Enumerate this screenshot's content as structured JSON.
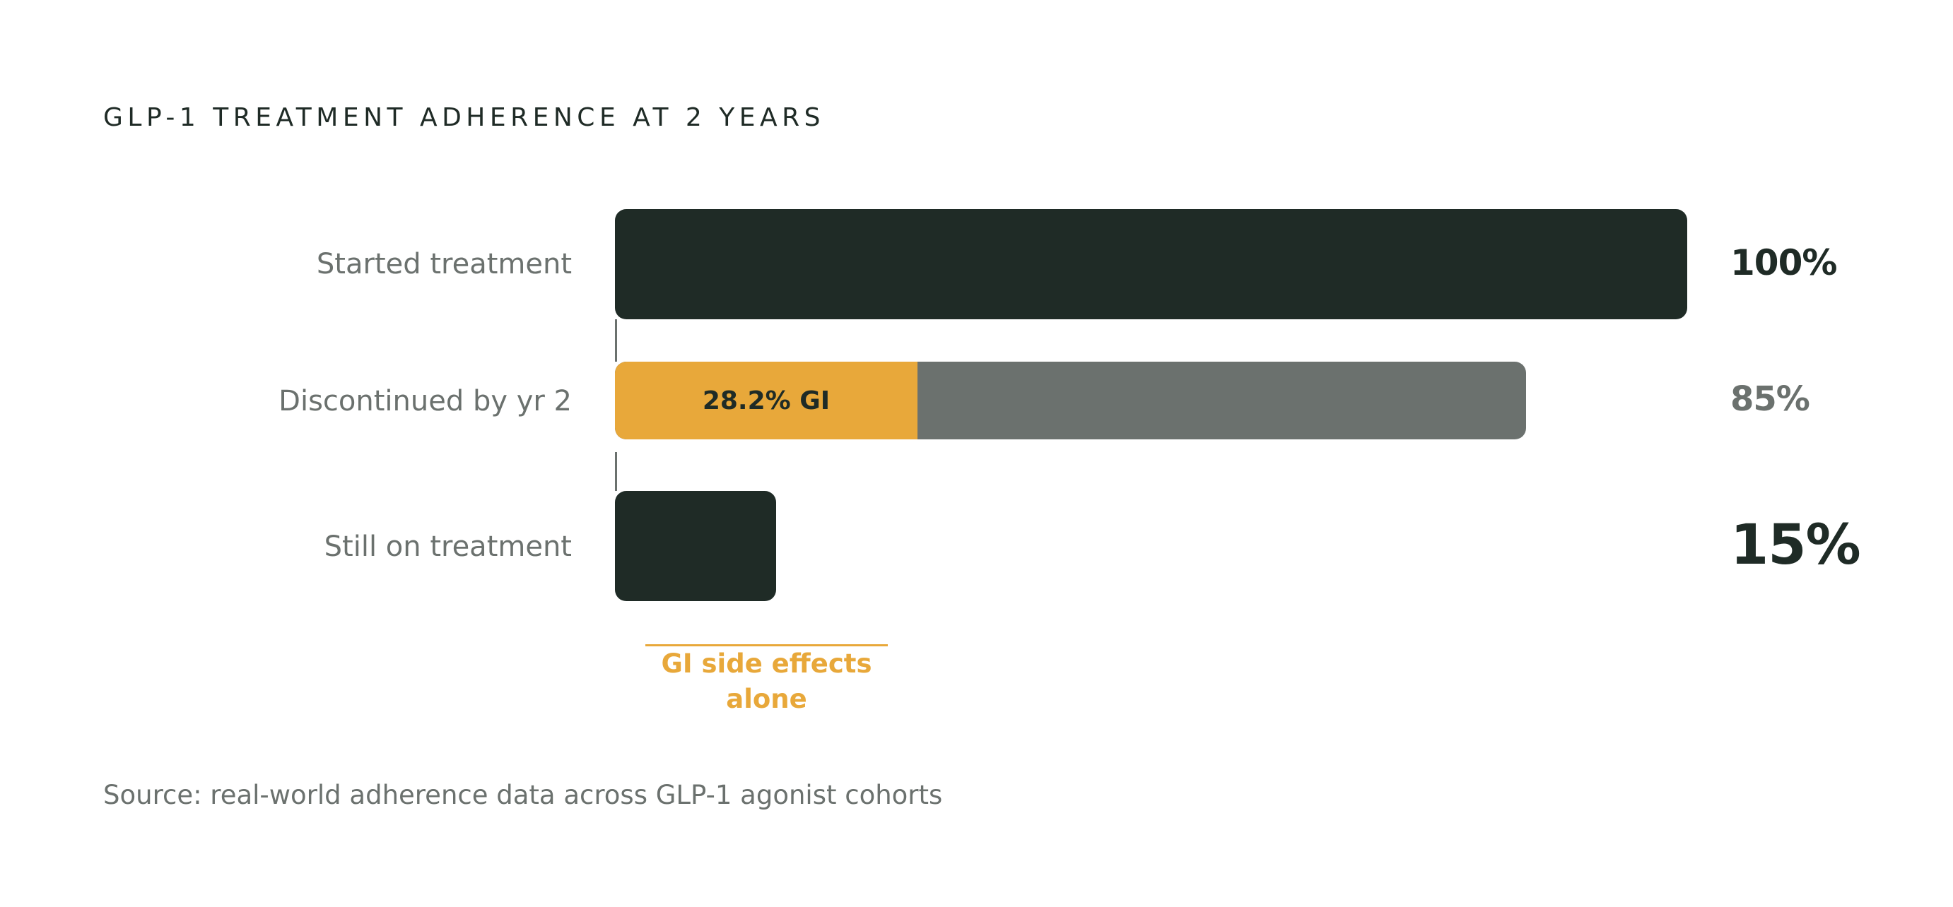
{
  "chart_data": {
    "type": "bar",
    "orientation": "horizontal",
    "title": "GLP-1 TREATMENT ADHERENCE AT 2 YEARS",
    "categories": [
      "Started treatment",
      "Discontinued by yr 2",
      "Still on treatment"
    ],
    "values": [
      100,
      85,
      15
    ],
    "value_labels": [
      "100%",
      "85%",
      "15%"
    ],
    "xlim": [
      0,
      100
    ],
    "segments": {
      "category": "Discontinued by yr 2",
      "highlight_value": 28.2,
      "highlight_label": "28.2% GI",
      "highlight_color": "#e8a83a"
    },
    "annotation": "GI side effects alone",
    "source": "Source: real-world adherence data across GLP-1 agonist cohorts",
    "colors": {
      "primary": "#1f2b26",
      "secondary": "#6b716e",
      "accent": "#e8a83a"
    }
  }
}
